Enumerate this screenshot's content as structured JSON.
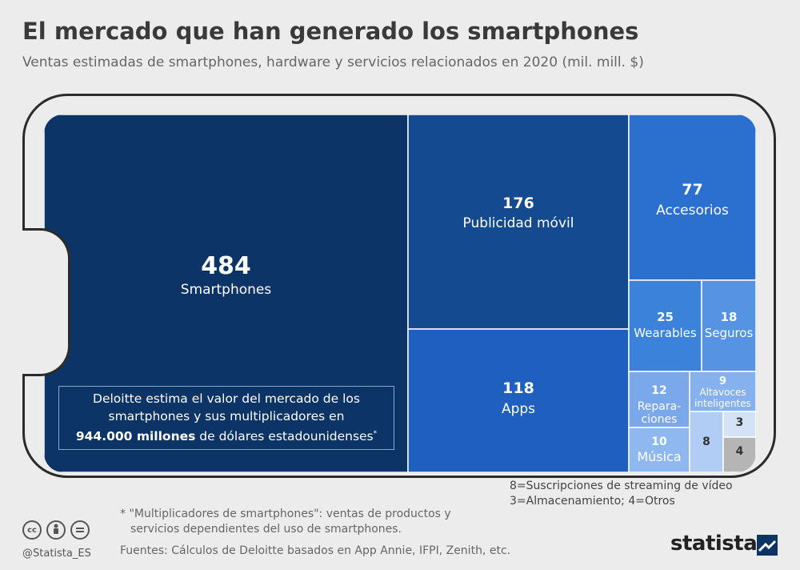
{
  "header": {
    "title": "El mercado que han generado los smartphones",
    "subtitle": "Ventas estimadas de smartphones, hardware y servicios relacionados en 2020 (mil. mill. $)"
  },
  "chart_data": {
    "type": "treemap",
    "title": "El mercado que han generado los smartphones",
    "subtitle": "Ventas estimadas de smartphones, hardware y servicios relacionados en 2020 (mil. mill. $)",
    "unit": "mil. mill. $",
    "items": [
      {
        "label": "Smartphones",
        "value": 484,
        "display": "484",
        "color": "#0c3466",
        "text_color": "#ffffff"
      },
      {
        "label": "Publicidad móvil",
        "value": 176,
        "display": "176",
        "color": "#144a8f",
        "text_color": "#ffffff"
      },
      {
        "label": "Apps",
        "value": 118,
        "display": "118",
        "color": "#1f5fc0",
        "text_color": "#ffffff"
      },
      {
        "label": "Accesorios",
        "value": 77,
        "display": "77",
        "color": "#2b6fcf",
        "text_color": "#ffffff"
      },
      {
        "label": "Wearables",
        "value": 25,
        "display": "25",
        "color": "#3a82da",
        "text_color": "#ffffff"
      },
      {
        "label": "Seguros",
        "value": 18,
        "display": "18",
        "color": "#5793e3",
        "text_color": "#ffffff"
      },
      {
        "label": "Repara-ciones",
        "value": 12,
        "display": "12",
        "color": "#7aa8ea",
        "text_color": "#ffffff"
      },
      {
        "label": "Altavoces inteligentes",
        "value": 9,
        "display": "9",
        "color": "#86b0ee",
        "text_color": "#ffffff"
      },
      {
        "label": "Música",
        "value": 10,
        "display": "10",
        "color": "#8fb7f0",
        "text_color": "#ffffff"
      },
      {
        "label": "Suscripciones de streaming de vídeo",
        "value": 8,
        "display": "8",
        "color": "#b2cdf5",
        "text_color": "#333333"
      },
      {
        "label": "Almacenamiento",
        "value": 3,
        "display": "3",
        "color": "#d3e2f7",
        "text_color": "#333333"
      },
      {
        "label": "Otros",
        "value": 4,
        "display": "4",
        "color": "#b5b5b5",
        "text_color": "#333333"
      }
    ]
  },
  "callout": {
    "line1": "Deloitte estima el valor del mercado de los",
    "line2": "smartphones y sus multiplicadores en",
    "bold": "944.000 millones",
    "line3_rest": " de dólares estadounidenses",
    "sup": "*"
  },
  "legend_note": {
    "line1": "8=Suscripciones de streaming  de vídeo",
    "line2": "3=Almacenamiento; 4=Otros"
  },
  "footnote": {
    "line1": "* \"Multiplicadores de smartphones\": ventas de productos y",
    "line2": "servicios dependientes del uso de smartphones."
  },
  "footer": {
    "handle": "@Statista_ES",
    "sources": "Fuentes: Cálculos de Deloitte basados en App Annie, IFPI, Zenith, etc.",
    "brand": "statista",
    "cc_icons": [
      "cc-icon",
      "by-icon",
      "nd-icon"
    ]
  },
  "colors": {
    "background": "#ececec",
    "title": "#3a3a3a",
    "border": "#2b2b2b"
  }
}
